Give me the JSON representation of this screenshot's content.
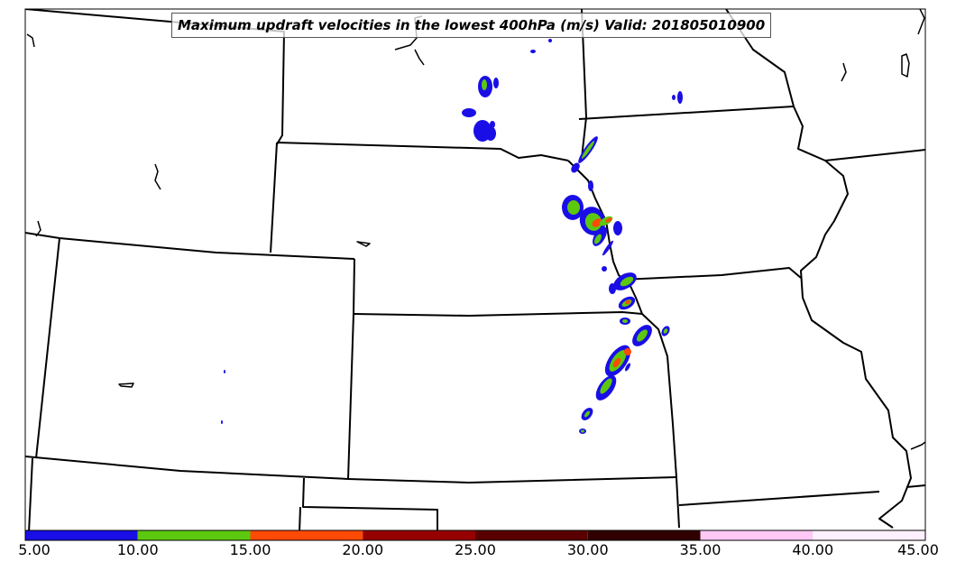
{
  "title": "Maximum updraft velocities in the lowest 400hPa (m/s) Valid: 201805010900",
  "colorbar": {
    "tick_labels": [
      "5.00",
      "10.00",
      "15.00",
      "20.00",
      "25.00",
      "30.00",
      "35.00",
      "40.00",
      "45.00"
    ],
    "colors": [
      "#1a0ee6",
      "#5cc80f",
      "#ff4a05",
      "#960000",
      "#5a0000",
      "#300000",
      "#ffc8f5",
      "#fff0ff"
    ]
  },
  "contour_levels": [
    5,
    10,
    15,
    20,
    25,
    30,
    35,
    40,
    45
  ],
  "colors": {
    "boundary": "#000000",
    "background": "#ffffff"
  }
}
